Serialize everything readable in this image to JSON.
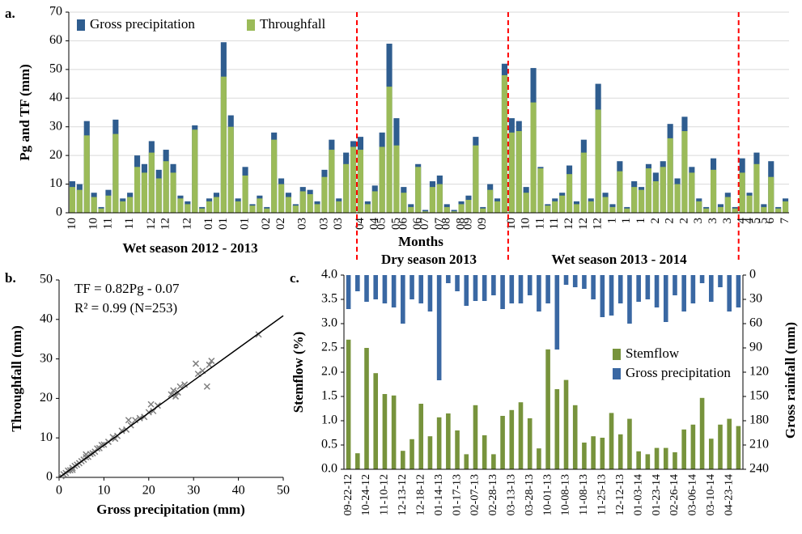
{
  "chart_data": [
    {
      "type": "bar",
      "panel_label": "a.",
      "ylabel": "Pg and TF (mm)",
      "xlabel": "Months",
      "annotations": [
        "Wet season 2012 - 2013",
        "Dry season 2013",
        "Wet season 2013 - 2014"
      ],
      "categories": [
        "10",
        null,
        null,
        "10",
        null,
        "11",
        null,
        null,
        "11",
        null,
        null,
        "12",
        null,
        "12",
        null,
        null,
        "12",
        null,
        null,
        "01",
        null,
        "01",
        null,
        null,
        "01",
        null,
        null,
        "02",
        null,
        "02",
        null,
        null,
        "03",
        null,
        null,
        "03",
        null,
        "03",
        null,
        null,
        "04",
        null,
        "04",
        "05",
        null,
        "05",
        "06",
        null,
        "06",
        "07",
        null,
        "07",
        "08",
        null,
        "08",
        "09",
        null,
        "09",
        null,
        null,
        null,
        "10",
        null,
        "10",
        null,
        "11",
        null,
        "11",
        null,
        "12",
        null,
        "12",
        null,
        "12",
        null,
        "1",
        null,
        "1",
        null,
        "1",
        null,
        "2",
        null,
        "2",
        null,
        "2",
        null,
        "3",
        null,
        "3",
        null,
        "3",
        null,
        "4",
        "4",
        "5",
        "5",
        "6",
        null,
        "7"
      ],
      "series": [
        {
          "name": "Gross precipitation",
          "color": "#2f5d8f",
          "values": [
            11,
            10,
            32,
            7,
            2,
            8,
            32.5,
            5,
            7,
            20,
            17,
            25,
            15,
            22,
            17,
            6,
            4,
            30.5,
            2,
            5,
            7,
            59.5,
            34,
            5,
            16,
            3,
            6,
            2,
            28,
            12,
            7,
            3,
            9,
            8,
            4,
            15,
            25.5,
            5,
            21,
            25,
            26.5,
            4,
            9.5,
            28,
            59,
            33,
            9,
            3,
            17,
            1,
            11,
            13,
            3,
            1,
            4,
            6,
            26.5,
            2,
            10,
            5,
            52,
            33,
            32,
            9,
            50.5,
            16,
            3,
            5,
            7,
            16.5,
            4,
            25.5,
            5,
            45,
            7,
            3,
            18,
            2,
            11,
            9,
            17,
            14,
            18,
            31,
            12,
            33.5,
            16,
            5,
            2,
            19,
            3,
            7,
            2,
            19,
            7,
            21,
            3,
            18,
            2,
            5
          ]
        },
        {
          "name": "Throughfall",
          "color": "#9bbb59",
          "values": [
            9,
            8,
            27,
            5.5,
            1.5,
            6,
            27.5,
            4,
            5.5,
            16,
            14,
            21,
            12,
            18,
            14,
            5,
            3,
            29,
            1.5,
            4,
            5.5,
            47.5,
            30,
            4,
            13,
            2.5,
            5,
            1.5,
            25.5,
            10,
            5.5,
            2.5,
            7.5,
            6.5,
            3,
            12.5,
            22,
            4,
            17,
            23,
            22,
            3,
            7.5,
            23,
            44,
            23.5,
            7,
            2,
            16,
            0.5,
            9,
            10,
            2,
            0.5,
            3,
            4.5,
            23.5,
            1.5,
            8,
            4,
            48,
            28,
            28.5,
            7,
            38.5,
            15.5,
            2.5,
            4,
            6,
            13.5,
            3,
            21,
            4,
            36,
            5.5,
            2,
            14.5,
            1.5,
            9,
            8,
            15.5,
            11,
            16,
            26,
            10,
            28.5,
            14,
            4,
            1.5,
            15,
            2,
            5.5,
            1.5,
            14,
            6,
            17,
            2,
            12.5,
            1.5,
            4
          ]
        }
      ],
      "ylim": [
        0,
        70
      ],
      "yticks": [
        0,
        10,
        20,
        30,
        40,
        50,
        60,
        70
      ],
      "grid": true
    },
    {
      "type": "scatter",
      "panel_label": "b.",
      "xlabel": "Gross precipitation (mm)",
      "ylabel": "Throughfall (mm)",
      "annotations": [
        "TF = 0.82Pg - 0.07",
        "R² = 0.99 (N=253)"
      ],
      "fit": {
        "slope": 0.82,
        "intercept": -0.07
      },
      "color": "#7f7f7f",
      "x": [
        0.5,
        1,
        1.5,
        2,
        2.5,
        3,
        3.5,
        4,
        4.5,
        5,
        5.5,
        6,
        6.5,
        7,
        7.5,
        8,
        8.5,
        9,
        10,
        11,
        12,
        13,
        14,
        15,
        15.5,
        16,
        17,
        18,
        19,
        20,
        20.5,
        21,
        22,
        25,
        25.5,
        26,
        26.5,
        27,
        28,
        30.5,
        31,
        32,
        33,
        33.5,
        34,
        44.5,
        6,
        9.5,
        12.5,
        3
      ],
      "y": [
        0.3,
        0.8,
        1.1,
        1.7,
        1.8,
        2.4,
        2.9,
        3.2,
        3.6,
        4.1,
        4.5,
        5.1,
        5.2,
        5.9,
        6.1,
        6.5,
        7.3,
        7.4,
        8.3,
        9,
        10.2,
        10.5,
        11.8,
        12.1,
        14.5,
        13.2,
        14.5,
        15,
        15.3,
        16.5,
        18.5,
        16.8,
        18.2,
        21,
        22,
        20.5,
        21.5,
        23,
        23.5,
        28.8,
        26.2,
        27,
        23,
        28.5,
        29.5,
        36.2,
        5.8,
        8.2,
        9.8,
        1.9
      ],
      "xlim": [
        0,
        50
      ],
      "xticks": [
        0,
        10,
        20,
        30,
        40,
        50
      ],
      "ylim": [
        0,
        50
      ],
      "yticks": [
        0,
        10,
        20,
        30,
        40,
        50
      ]
    },
    {
      "type": "bar",
      "panel_label": "c.",
      "ylabel": "Stemflow (%)",
      "y2label": "Gross rainfall (mm)",
      "categories": [
        "09-22-12",
        null,
        "10-24-12",
        null,
        "11-10-12",
        null,
        "12-13-12",
        null,
        "12-18-12",
        null,
        "01-14-13",
        null,
        "01-17-13",
        null,
        "02-07-13",
        null,
        "02-28-13",
        null,
        "03-13-13",
        null,
        "03-28-13",
        null,
        "10-01-13",
        null,
        "10-08-13",
        null,
        "11-08-13",
        null,
        "11-25-13",
        null,
        "12-12-13",
        null,
        "01-03-14",
        null,
        "01-23-14",
        null,
        "02-26-14",
        null,
        "03-06-14",
        null,
        "03-10-14",
        null,
        "04-23-14",
        null
      ],
      "series": [
        {
          "name": "Stemflow",
          "color": "#77933c",
          "values": [
            2.67,
            0.33,
            2.5,
            1.98,
            1.55,
            1.52,
            0.38,
            0.62,
            1.35,
            0.68,
            1.07,
            1.15,
            0.8,
            0.31,
            1.32,
            0.7,
            0.31,
            1.1,
            1.22,
            1.38,
            1.05,
            0.43,
            2.47,
            1.65,
            1.84,
            1.32,
            0.55,
            0.68,
            0.65,
            1.16,
            0.72,
            1.04,
            0.37,
            0.31,
            0.44,
            0.44,
            0.35,
            0.82,
            0.92,
            1.47,
            0.63,
            0.92,
            1.04,
            0.89
          ]
        },
        {
          "name": "Gross precipitation",
          "color": "#3a68a3",
          "axis": "y2",
          "values": [
            42,
            20,
            33,
            30,
            35,
            40,
            60,
            30,
            35,
            45,
            130,
            10,
            20,
            38,
            32,
            32,
            25,
            42,
            35,
            35,
            25,
            45,
            35,
            92,
            12,
            15,
            17,
            30,
            52,
            50,
            35,
            60,
            33,
            30,
            40,
            58,
            25,
            45,
            35,
            10,
            33,
            15,
            45,
            40
          ]
        }
      ],
      "ylim": [
        0,
        4
      ],
      "yticks": [
        {
          "value": 0,
          "label": "0.0"
        },
        0.5,
        {
          "value": 1,
          "label": "1.0"
        },
        1.5,
        {
          "value": 2,
          "label": "2.0"
        },
        2.5,
        {
          "value": 3,
          "label": "3.0"
        },
        3.5,
        {
          "value": 4,
          "label": "4.0"
        }
      ],
      "y2lim": [
        240,
        0
      ],
      "y2ticks": [
        0,
        30,
        60,
        90,
        120,
        150,
        180,
        210,
        240
      ]
    }
  ]
}
